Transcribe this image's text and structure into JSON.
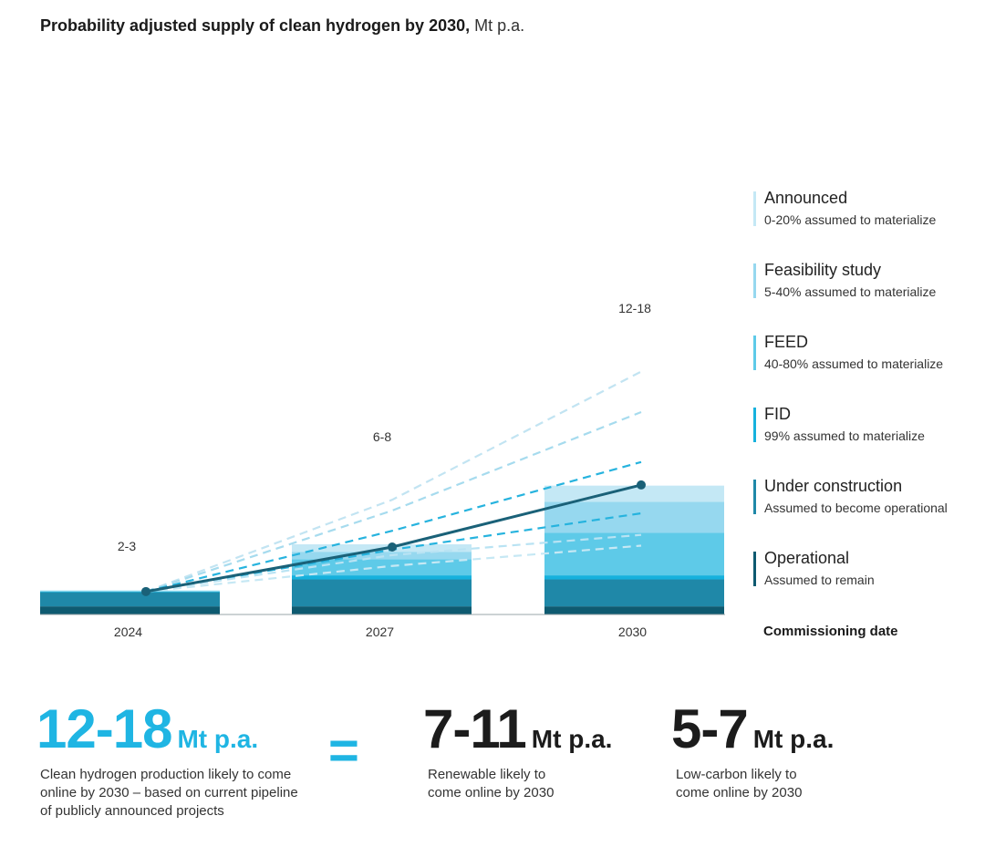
{
  "title": {
    "bold": "Probability adjusted supply of clean hydrogen by 2030,",
    "unit": "Mt p.a."
  },
  "chart_data": {
    "type": "bar",
    "categories": [
      "2024",
      "2027",
      "2030"
    ],
    "x_axis_label": "Commissioning date",
    "ylim": [
      0,
      45
    ],
    "stack_order": [
      "Operational",
      "Under construction",
      "FID",
      "FEED",
      "Feasibility study",
      "Announced"
    ],
    "series": [
      {
        "name": "Operational",
        "values": [
          0.6,
          0.6,
          0.6
        ],
        "color": "#0e5a70"
      },
      {
        "name": "Under construction",
        "values": [
          1.05,
          2.0,
          2.0
        ],
        "color": "#1f88a8"
      },
      {
        "name": "FID",
        "values": [
          0.05,
          0.3,
          0.3
        ],
        "color": "#16b1dd"
      },
      {
        "name": "FEED",
        "values": [
          0.03,
          1.2,
          3.15
        ],
        "color": "#5ecae8"
      },
      {
        "name": "Feasibility study",
        "values": [
          0.03,
          0.55,
          2.3
        ],
        "color": "#96d8ef"
      },
      {
        "name": "Announced",
        "values": [
          0.04,
          0.55,
          1.2
        ],
        "color": "#c4e8f5"
      }
    ],
    "line": {
      "name": "Probability adjusted supply",
      "values": [
        1.7,
        5.0,
        9.6
      ],
      "color": "#1a6178"
    },
    "range_labels": [
      "2-3",
      "6-8",
      "12-18"
    ],
    "scenario_lines": [
      {
        "values": [
          1.7,
          8.5,
          18.0
        ],
        "color": "#c2e4f2"
      },
      {
        "values": [
          1.7,
          7.7,
          15.0
        ],
        "color": "#a6dbee"
      },
      {
        "values": [
          1.7,
          6.2,
          11.3
        ],
        "color": "#26b3de"
      },
      {
        "values": [
          1.7,
          4.8,
          7.5
        ],
        "color": "#26b3de"
      },
      {
        "values": [
          1.7,
          4.4,
          5.9
        ],
        "color": "#b9e3f3"
      },
      {
        "values": [
          1.7,
          3.6,
          5.1
        ],
        "color": "#c6e8f4"
      }
    ]
  },
  "legend": [
    {
      "name": "Announced",
      "desc": "0-20% assumed to materialize",
      "color": "#c4e8f5"
    },
    {
      "name": "Feasibility study",
      "desc": "5-40% assumed to materialize",
      "color": "#96d8ef"
    },
    {
      "name": "FEED",
      "desc": "40-80% assumed to materialize",
      "color": "#5ecae8"
    },
    {
      "name": "FID",
      "desc": "99% assumed to materialize",
      "color": "#16b1dd"
    },
    {
      "name": "Under construction",
      "desc": "Assumed to become operational",
      "color": "#1f88a8"
    },
    {
      "name": "Operational",
      "desc": "Assumed to remain",
      "color": "#0e5a70"
    }
  ],
  "summary": {
    "total": {
      "value": "12-18",
      "unit": "Mt p.a.",
      "desc1": "Clean hydrogen production likely to come",
      "desc2": "online by 2030 – based on current pipeline",
      "desc3": "of publicly announced projects"
    },
    "equals": "=",
    "renewable": {
      "value": "7-11",
      "unit": "Mt p.a.",
      "desc1": "Renewable likely to",
      "desc2": "come online by 2030"
    },
    "lowcarbon": {
      "value": "5-7",
      "unit": "Mt p.a.",
      "desc1": "Low-carbon likely to",
      "desc2": "come online by 2030"
    }
  }
}
